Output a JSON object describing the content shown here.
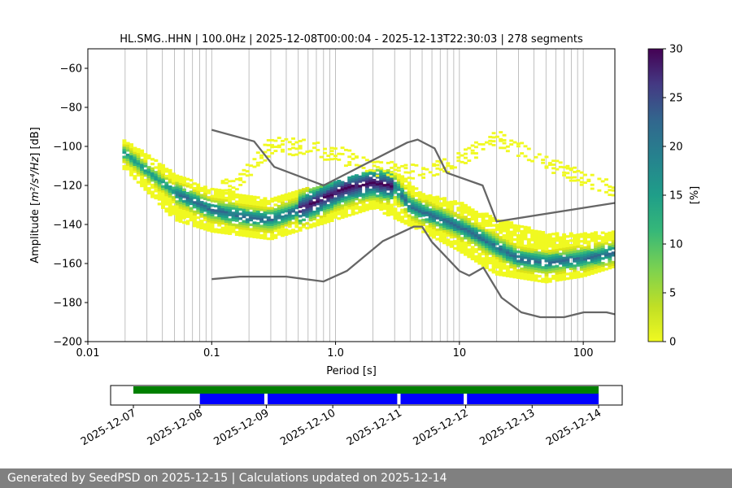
{
  "chart_data": {
    "type": "heatmap",
    "title": "HL.SMG..HHN | 100.0Hz | 2025-12-08T00:00:04 - 2025-12-13T22:30:03 | 278 segments",
    "xlabel": "Period [s]",
    "ylabel_prefix": "Amplitude [",
    "ylabel_math": "m²/s⁴/Hz",
    "ylabel_suffix": "] [dB]",
    "x_scale": "log",
    "xlim": [
      0.01,
      180
    ],
    "ylim": [
      -200,
      -50
    ],
    "x_ticks": [
      {
        "value": 0.01,
        "label": "0.01"
      },
      {
        "value": 0.1,
        "label": "0.1"
      },
      {
        "value": 1,
        "label": "1.0"
      },
      {
        "value": 10,
        "label": "10"
      },
      {
        "value": 100,
        "label": "100"
      }
    ],
    "y_ticks": [
      {
        "value": -60,
        "label": "−60"
      },
      {
        "value": -80,
        "label": "−80"
      },
      {
        "value": -100,
        "label": "−100"
      },
      {
        "value": -120,
        "label": "−120"
      },
      {
        "value": -140,
        "label": "−140"
      },
      {
        "value": -160,
        "label": "−160"
      },
      {
        "value": -180,
        "label": "−180"
      },
      {
        "value": -200,
        "label": "−200"
      }
    ],
    "grid": "vertical",
    "colorbar": {
      "label": "[%]",
      "range": [
        0,
        30
      ],
      "ticks": [
        {
          "value": 0,
          "label": "0"
        },
        {
          "value": 5,
          "label": "5"
        },
        {
          "value": 10,
          "label": "10"
        },
        {
          "value": 15,
          "label": "15"
        },
        {
          "value": 20,
          "label": "20"
        },
        {
          "value": 25,
          "label": "25"
        },
        {
          "value": 30,
          "label": "30"
        }
      ]
    },
    "density_mode": [
      [
        0.02,
        -104
      ],
      [
        0.03,
        -113
      ],
      [
        0.05,
        -124
      ],
      [
        0.1,
        -133
      ],
      [
        0.2,
        -137
      ],
      [
        0.3,
        -138
      ],
      [
        0.5,
        -133
      ],
      [
        0.8,
        -127
      ],
      [
        1.2,
        -122
      ],
      [
        2,
        -119
      ],
      [
        3,
        -121
      ],
      [
        4,
        -131
      ],
      [
        5,
        -134
      ],
      [
        8,
        -139
      ],
      [
        12,
        -144
      ],
      [
        20,
        -152
      ],
      [
        30,
        -158
      ],
      [
        50,
        -160
      ],
      [
        100,
        -158
      ],
      [
        180,
        -155
      ]
    ],
    "density_lower": [
      [
        0.02,
        -110
      ],
      [
        0.05,
        -136
      ],
      [
        0.1,
        -142
      ],
      [
        0.3,
        -146
      ],
      [
        1,
        -136
      ],
      [
        2,
        -130
      ],
      [
        5,
        -142
      ],
      [
        10,
        -152
      ],
      [
        20,
        -164
      ],
      [
        50,
        -168
      ],
      [
        100,
        -165
      ],
      [
        180,
        -160
      ]
    ],
    "density_upper": [
      [
        0.02,
        -98
      ],
      [
        0.05,
        -115
      ],
      [
        0.1,
        -123
      ],
      [
        0.3,
        -128
      ],
      [
        1,
        -119
      ],
      [
        2,
        -113
      ],
      [
        3,
        -114
      ],
      [
        5,
        -125
      ],
      [
        10,
        -130
      ],
      [
        20,
        -138
      ],
      [
        50,
        -146
      ],
      [
        100,
        -146
      ],
      [
        180,
        -145
      ]
    ],
    "outlier_upper": [
      [
        0.15,
        -117
      ],
      [
        0.3,
        -96
      ],
      [
        0.6,
        -97
      ],
      [
        1,
        -100
      ],
      [
        2,
        -107
      ],
      [
        3,
        -108
      ],
      [
        5,
        -110
      ],
      [
        10,
        -103
      ],
      [
        20,
        -92
      ],
      [
        40,
        -102
      ],
      [
        100,
        -113
      ],
      [
        180,
        -118
      ]
    ],
    "high_noise_model": [
      [
        0.1,
        -91.5
      ],
      [
        0.22,
        -97.4
      ],
      [
        0.32,
        -110.5
      ],
      [
        0.8,
        -120.0
      ],
      [
        3.8,
        -98.0
      ],
      [
        4.6,
        -96.5
      ],
      [
        6.3,
        -101.0
      ],
      [
        7.9,
        -113.5
      ],
      [
        15.4,
        -120.0
      ],
      [
        20,
        -138.5
      ],
      [
        354.8,
        -126.0
      ]
    ],
    "low_noise_model": [
      [
        0.1,
        -168.0
      ],
      [
        0.17,
        -166.7
      ],
      [
        0.4,
        -166.7
      ],
      [
        0.8,
        -169.2
      ],
      [
        1.24,
        -163.7
      ],
      [
        2.4,
        -148.6
      ],
      [
        4.3,
        -141.1
      ],
      [
        5,
        -141.1
      ],
      [
        6,
        -149.0
      ],
      [
        10,
        -163.8
      ],
      [
        12,
        -166.2
      ],
      [
        15.6,
        -162.1
      ],
      [
        21.9,
        -177.5
      ],
      [
        31.6,
        -185.0
      ],
      [
        45,
        -187.5
      ],
      [
        70,
        -187.5
      ],
      [
        101,
        -185.0
      ],
      [
        154,
        -185.0
      ],
      [
        180,
        -186
      ]
    ],
    "timeline": {
      "date_ticks": [
        "2025-12-07",
        "2025-12-08",
        "2025-12-09",
        "2025-12-10",
        "2025-12-11",
        "2025-12-12",
        "2025-12-13",
        "2025-12-14"
      ],
      "green_bar": {
        "start_day": 0,
        "end_day": 7
      },
      "blue_segments": [
        {
          "start_day": 1.0,
          "end_day": 1.97
        },
        {
          "start_day": 2.02,
          "end_day": 3.97
        },
        {
          "start_day": 4.02,
          "end_day": 4.97
        },
        {
          "start_day": 5.02,
          "end_day": 7.0
        }
      ],
      "colors": {
        "green": "#008000",
        "blue": "#0000ff"
      }
    }
  },
  "footer": {
    "text": "Generated by SeedPSD on 2025-12-15 | Calculations updated on 2025-12-14"
  }
}
